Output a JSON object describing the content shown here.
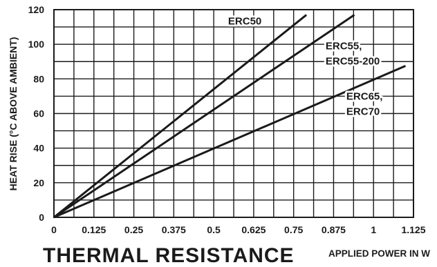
{
  "chart_data": {
    "type": "line",
    "title": "THERMAL RESISTANCE",
    "xlabel": "APPLIED POWER IN W",
    "ylabel": "HEAT RISE (°C ABOVE AMBIENT)",
    "xlim": [
      0,
      1.125
    ],
    "ylim": [
      0,
      120
    ],
    "x_ticks": [
      0,
      0.125,
      0.25,
      0.375,
      0.5,
      0.625,
      0.75,
      0.875,
      1,
      1.125
    ],
    "x_tick_labels": [
      "0",
      "0.125",
      "0.25",
      "0.375",
      "0.5",
      "0.625",
      "0.75",
      "0.875",
      "1",
      "1.125"
    ],
    "x_minor_step": 0.0625,
    "y_ticks": [
      0,
      20,
      40,
      60,
      80,
      100,
      120
    ],
    "y_tick_labels": [
      "0",
      "20",
      "40",
      "60",
      "80",
      "100",
      "120"
    ],
    "y_minor_step": 10,
    "grid": true,
    "series": [
      {
        "name": "ERC50",
        "x": [
          0,
          0.79
        ],
        "y": [
          0,
          117
        ],
        "label_lines": [
          "ERC50"
        ]
      },
      {
        "name": "ERC55, ERC55-200",
        "x": [
          0,
          0.94
        ],
        "y": [
          0,
          117
        ],
        "label_lines": [
          "ERC55,",
          "ERC55-200"
        ]
      },
      {
        "name": "ERC65, ERC70",
        "x": [
          0,
          1.1
        ],
        "y": [
          0,
          87.5
        ],
        "label_lines": [
          "ERC65,",
          "ERC70"
        ]
      }
    ],
    "colors": {
      "line": "#1a1a1a",
      "grid": "#1a1a1a",
      "background": "#ffffff"
    }
  }
}
